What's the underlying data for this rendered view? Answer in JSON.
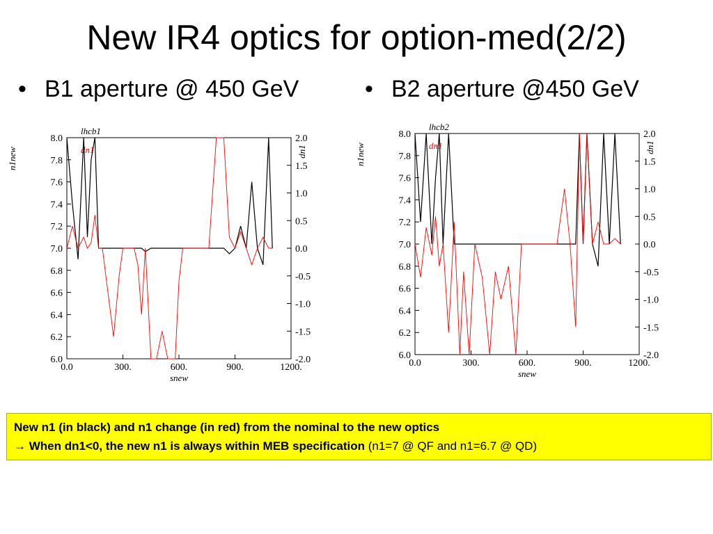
{
  "title": "New IR4 optics for option-med(2/2)",
  "bullets": [
    {
      "marker": "•",
      "text": "B1 aperture @ 450 GeV"
    },
    {
      "marker": "•",
      "text": "B2 aperture @450 GeV"
    }
  ],
  "plots": [
    {
      "label": "lhcb1",
      "series_label": "dn1",
      "xlabel": "snew",
      "ylabel_left": "n1new",
      "ylabel_right": "dn1",
      "xticks": [
        "0.0",
        "300.",
        "600.",
        "900.",
        "1200."
      ],
      "yticks_left": [
        "8.0",
        "7.8",
        "7.6",
        "7.4",
        "7.2",
        "7.0",
        "6.8",
        "6.6",
        "6.4",
        "6.2",
        "6.0"
      ],
      "yticks_right": [
        "2.0",
        "1.5",
        "1.0",
        "0.5",
        "0.0",
        "-0.5",
        "-1.0",
        "-1.5",
        "-2.0"
      ]
    },
    {
      "label": "lhcb2",
      "series_label": "dn1",
      "xlabel": "snew",
      "ylabel_left": "n1new",
      "ylabel_right": "dn1",
      "xticks": [
        "0.0",
        "300.",
        "600.",
        "900.",
        "1200."
      ],
      "yticks_left": [
        "8.0",
        "7.8",
        "7.6",
        "7.4",
        "7.2",
        "7.0",
        "6.8",
        "6.6",
        "6.4",
        "6.2",
        "6.0"
      ],
      "yticks_right": [
        "2.0",
        "1.5",
        "1.0",
        "0.5",
        "0.0",
        "-0.5",
        "-1.0",
        "-1.5",
        "-2.0"
      ]
    }
  ],
  "chart_data": [
    {
      "type": "line",
      "x": [
        0,
        30,
        60,
        90,
        110,
        130,
        150,
        170,
        190,
        220,
        250,
        280,
        300,
        330,
        360,
        380,
        400,
        420,
        450,
        480,
        510,
        540,
        560,
        580,
        600,
        620,
        650,
        680,
        720,
        760,
        800,
        840,
        870,
        900,
        930,
        960,
        990,
        1020,
        1050,
        1080,
        1100
      ],
      "series": [
        {
          "name": "n1new",
          "color": "#000000",
          "values": [
            8.0,
            7.4,
            6.9,
            8.0,
            7.1,
            7.8,
            8.0,
            7.0,
            7.0,
            7.0,
            7.0,
            7.0,
            7.0,
            7.0,
            7.0,
            7.0,
            7.0,
            6.97,
            7.0,
            7.0,
            7.0,
            7.0,
            7.0,
            7.0,
            7.0,
            7.0,
            7.0,
            7.0,
            7.0,
            7.0,
            7.0,
            7.0,
            6.95,
            7.0,
            7.2,
            7.0,
            7.6,
            7.0,
            6.85,
            8.0,
            7.0
          ]
        },
        {
          "name": "dn1",
          "color": "#ff0000",
          "values": [
            0.0,
            0.4,
            0.0,
            0.2,
            0.0,
            0.1,
            0.6,
            0.0,
            0.0,
            -0.8,
            -1.6,
            -0.5,
            0.0,
            0.0,
            0.0,
            -0.3,
            -1.2,
            0.0,
            -2.0,
            -2.0,
            -1.5,
            -2.0,
            -2.0,
            -2.0,
            -0.6,
            0.0,
            0.0,
            0.0,
            0.0,
            0.0,
            2.0,
            2.0,
            0.2,
            0.0,
            0.3,
            0.0,
            -0.3,
            0.0,
            0.2,
            0.0,
            0.0
          ]
        }
      ],
      "xlim": [
        0,
        1200
      ],
      "ylim": [
        6.0,
        8.0
      ],
      "y2lim": [
        -2.0,
        2.0
      ]
    },
    {
      "type": "line",
      "x": [
        0,
        30,
        60,
        90,
        110,
        130,
        150,
        180,
        210,
        240,
        260,
        290,
        320,
        360,
        400,
        430,
        460,
        500,
        540,
        570,
        600,
        640,
        680,
        720,
        760,
        800,
        830,
        860,
        880,
        900,
        920,
        950,
        980,
        1010,
        1040,
        1070,
        1100
      ],
      "series": [
        {
          "name": "n1new",
          "color": "#000000",
          "values": [
            8.0,
            7.2,
            8.0,
            7.0,
            7.6,
            8.0,
            7.0,
            8.0,
            7.0,
            7.0,
            7.0,
            7.0,
            7.0,
            7.0,
            7.0,
            7.0,
            7.0,
            7.0,
            7.0,
            7.0,
            7.0,
            7.0,
            7.0,
            7.0,
            7.0,
            7.0,
            7.0,
            7.0,
            8.0,
            7.0,
            8.0,
            7.0,
            6.8,
            8.0,
            7.0,
            8.0,
            7.0
          ]
        },
        {
          "name": "dn1",
          "color": "#ff0000",
          "values": [
            0.0,
            -0.6,
            0.3,
            -0.2,
            0.5,
            -0.4,
            0.0,
            -1.6,
            0.4,
            -2.0,
            -0.5,
            -2.0,
            0.0,
            -0.6,
            -2.0,
            -0.5,
            -1.0,
            -0.4,
            -2.0,
            0.0,
            0.0,
            0.0,
            0.0,
            0.0,
            0.0,
            1.0,
            0.0,
            -1.5,
            2.0,
            0.0,
            2.0,
            0.0,
            0.4,
            0.0,
            0.0,
            0.1,
            0.0
          ]
        }
      ],
      "xlim": [
        0,
        1200
      ],
      "ylim": [
        6.0,
        8.0
      ],
      "y2lim": [
        -2.0,
        2.0
      ]
    }
  ],
  "note": {
    "line1_bold": "New n1 (in black) and n1 change (in red) from the nominal to the new optics",
    "arrow": "→",
    "line2_bold": "When dn1<0, the new n1 is always within MEB specification",
    "line2_normal": " (n1=7 @ QF and n1=6.7 @ QD)"
  }
}
